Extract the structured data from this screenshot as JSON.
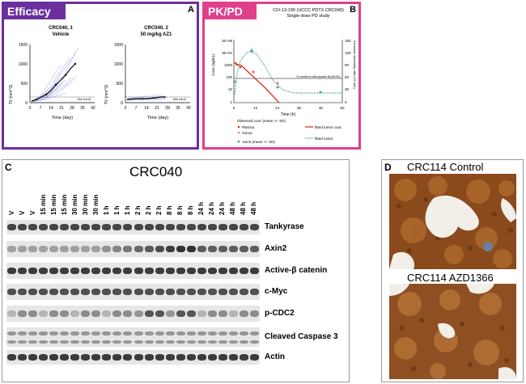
{
  "panels": {
    "a": {
      "letter": "A",
      "badge": "Efficacy",
      "plots": [
        {
          "title_line1": "CRC040, 1",
          "title_line2": "Vehicle",
          "ylabel": "TV (mm^3)",
          "xlabel": "Time (day)",
          "scale_label": "150 mm3",
          "yticks": [
            "0",
            "500",
            "1000",
            "1500"
          ],
          "xticks": [
            "0",
            "7",
            "14",
            "21",
            "28",
            "35",
            "42"
          ]
        },
        {
          "title_line1": "CRC040, 2",
          "title_line2": "50 mg/kg AZ1",
          "ylabel": "TV (mm^3)",
          "xlabel": "Time (day)",
          "scale_label": "150 mm3",
          "yticks": [
            "0",
            "500",
            "1000",
            "1500"
          ],
          "xticks": [
            "0",
            "7",
            "14",
            "21",
            "28",
            "35",
            "42"
          ]
        }
      ]
    },
    "b": {
      "letter": "B",
      "badge": "PK/PD",
      "title_line1": "CIV-13-190 (UCCC PDTX CRC040)",
      "title_line2": "Single-dose PD study",
      "ylabel_left": "Conc (ng/mL)",
      "ylabel_right": "Exclusive selectivity ratio (% Veh)",
      "xlabel": "Time (h)",
      "yticks_left": [
        "1E+05",
        "1E+04",
        "1000",
        "100",
        "10",
        "1"
      ],
      "yticks_right": [
        "150",
        "120",
        "90",
        "60",
        "30",
        "0"
      ],
      "xticks": [
        "0",
        "12",
        "24",
        "36",
        "48",
        "60"
      ],
      "annotation": "% control in ultra-sparse kit (B100)",
      "legend_header": "Observed conc (mean +/- SD)",
      "legend": [
        "Plasma",
        "Tumor",
        "Axin2 (mean +/- SD)",
        "fitted tumor conc",
        "fitted Axin2"
      ]
    },
    "c": {
      "letter": "C",
      "title": "CRC040",
      "lanes": [
        "V",
        "V",
        "V",
        "15 min",
        "15 min",
        "15 min",
        "30 min",
        "30 min",
        "30 min",
        "1 h",
        "1 h",
        "1 h",
        "2 h",
        "2 h",
        "2 h",
        "8 h",
        "8 h",
        "8 h",
        "24 h",
        "24 h",
        "24 h",
        "48 h",
        "48 h",
        "48 h"
      ],
      "blots": [
        "Tankyrase",
        "Axin2",
        "Active-β catenin",
        "c-Myc",
        "p-CDC2",
        "Cleaved Caspase 3",
        "Actin"
      ]
    },
    "d": {
      "letter": "D",
      "images": [
        {
          "title": "CRC114 Control"
        },
        {
          "title": "CRC114 AZD1366"
        }
      ]
    }
  },
  "colors": {
    "efficacy": "#6b2fa0",
    "pkpd": "#e0408a",
    "fit_red": "#e0301e",
    "fit_teal": "#2f9e8a",
    "ihc_brown": "#8a4a1c"
  }
}
